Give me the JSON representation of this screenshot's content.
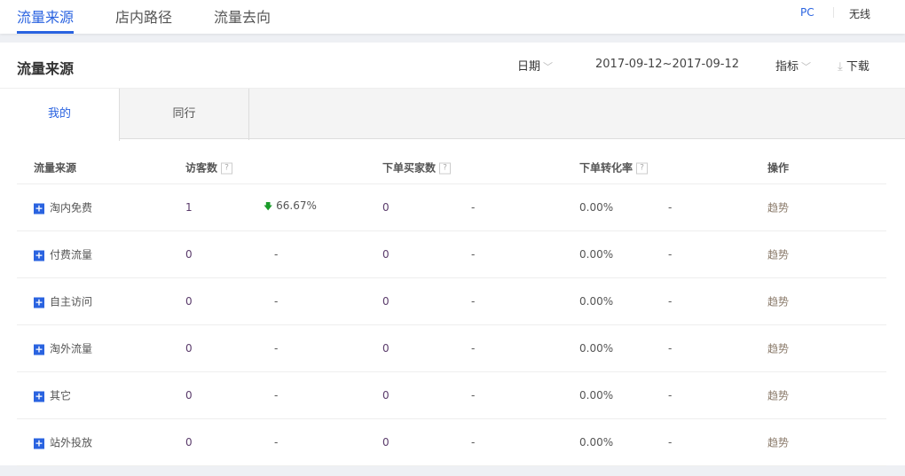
{
  "topnav": {
    "tabs": [
      {
        "label": "流量来源",
        "active": true
      },
      {
        "label": "店内路径"
      },
      {
        "label": "流量去向"
      }
    ],
    "devices": [
      {
        "label": "PC",
        "active": true
      },
      {
        "label": "无线"
      }
    ]
  },
  "header": {
    "title": "流量来源",
    "date_label": "日期",
    "date_range": "2017-09-12~2017-09-12",
    "metric_label": "指标",
    "download_label": "下载"
  },
  "subtabs": [
    {
      "label": "我的",
      "active": true
    },
    {
      "label": "同行"
    }
  ],
  "table": {
    "columns": [
      "流量来源",
      "访客数",
      "下单买家数",
      "下单转化率",
      "操作"
    ],
    "rows": [
      {
        "source": "淘内免费",
        "visitors": "1",
        "visitors_change": "66.67%",
        "change_dir": "down",
        "buyers": "0",
        "buyers_change": "-",
        "rate": "0.00%",
        "rate_change": "-",
        "action": "趋势"
      },
      {
        "source": "付费流量",
        "visitors": "0",
        "visitors_change": "-",
        "buyers": "0",
        "buyers_change": "-",
        "rate": "0.00%",
        "rate_change": "-",
        "action": "趋势"
      },
      {
        "source": "自主访问",
        "visitors": "0",
        "visitors_change": "-",
        "buyers": "0",
        "buyers_change": "-",
        "rate": "0.00%",
        "rate_change": "-",
        "action": "趋势"
      },
      {
        "source": "淘外流量",
        "visitors": "0",
        "visitors_change": "-",
        "buyers": "0",
        "buyers_change": "-",
        "rate": "0.00%",
        "rate_change": "-",
        "action": "趋势"
      },
      {
        "source": "其它",
        "visitors": "0",
        "visitors_change": "-",
        "buyers": "0",
        "buyers_change": "-",
        "rate": "0.00%",
        "rate_change": "-",
        "action": "趋势"
      },
      {
        "source": "站外投放",
        "visitors": "0",
        "visitors_change": "-",
        "buyers": "0",
        "buyers_change": "-",
        "rate": "0.00%",
        "rate_change": "-",
        "action": "趋势"
      }
    ]
  },
  "colors": {
    "accent": "#2a63e0",
    "down_arrow": "#1a9c2a"
  }
}
